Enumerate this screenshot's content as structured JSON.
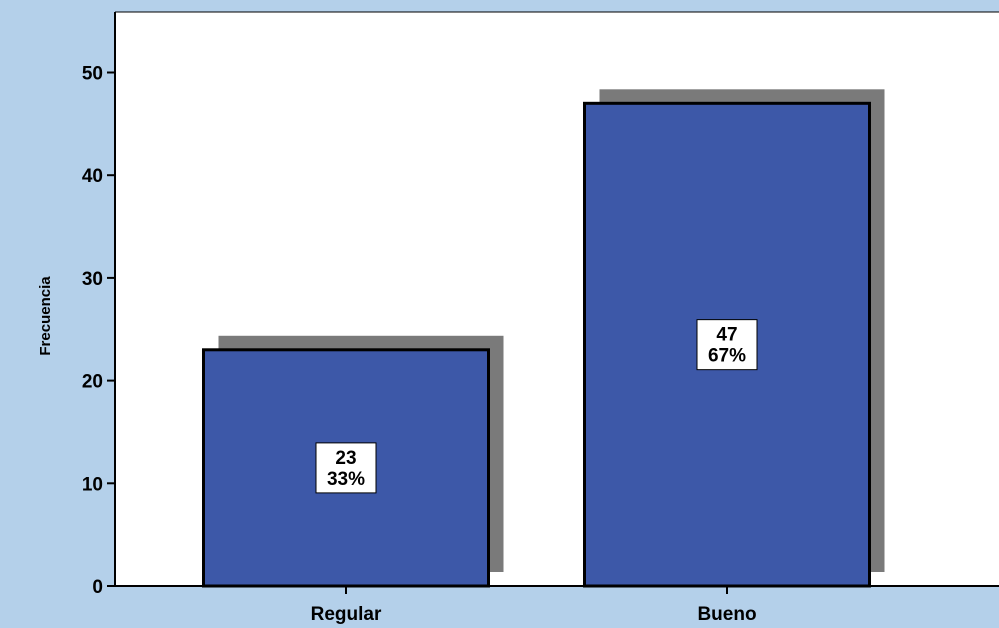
{
  "colors": {
    "frame_background": "#b4d0ea",
    "plot_background": "#ffffff",
    "bar_fill": "#3d58a8",
    "bar_shadow": "#7a7a7a",
    "bar_outline": "#000000"
  },
  "chart_data": {
    "type": "bar",
    "categories": [
      "Regular",
      "Bueno"
    ],
    "values": [
      23,
      47
    ],
    "percent_labels": [
      "33%",
      "67%"
    ],
    "xlabel": "",
    "ylabel": "Frecuencia",
    "ylim": [
      0,
      55
    ],
    "yticks": [
      0,
      10,
      20,
      30,
      40,
      50
    ],
    "grid": false,
    "legend": "none",
    "bar_shadow": true
  }
}
